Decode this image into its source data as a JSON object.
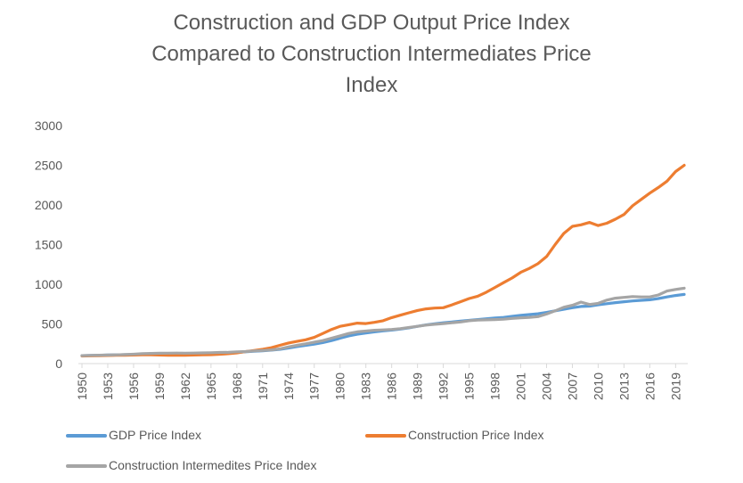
{
  "chart_data": {
    "type": "line",
    "title_lines": [
      "Construction and GDP Output Price Index",
      "Compared to Construction Intermediates Price",
      "Index"
    ],
    "xlabel": "",
    "ylabel": "",
    "ylim": [
      0,
      3000
    ],
    "yticks": [
      0,
      500,
      1000,
      1500,
      2000,
      2500,
      3000
    ],
    "xtick_years": [
      1950,
      1953,
      1956,
      1959,
      1962,
      1965,
      1968,
      1971,
      1974,
      1977,
      1980,
      1983,
      1986,
      1989,
      1992,
      1995,
      1998,
      2001,
      2004,
      2007,
      2010,
      2013,
      2016,
      2019
    ],
    "x": [
      1950,
      1951,
      1952,
      1953,
      1954,
      1955,
      1956,
      1957,
      1958,
      1959,
      1960,
      1961,
      1962,
      1963,
      1964,
      1965,
      1966,
      1967,
      1968,
      1969,
      1970,
      1971,
      1972,
      1973,
      1974,
      1975,
      1976,
      1977,
      1978,
      1979,
      1980,
      1981,
      1982,
      1983,
      1984,
      1985,
      1986,
      1987,
      1988,
      1989,
      1990,
      1991,
      1992,
      1993,
      1994,
      1995,
      1996,
      1997,
      1998,
      1999,
      2000,
      2001,
      2002,
      2003,
      2004,
      2005,
      2006,
      2007,
      2008,
      2009,
      2010,
      2011,
      2012,
      2013,
      2014,
      2015,
      2016,
      2017,
      2018,
      2019,
      2020
    ],
    "grid": false,
    "legend_position": "bottom",
    "series": [
      {
        "name": "GDP Price Index",
        "color": "#5b9bd5",
        "values": [
          100,
          102,
          105,
          108,
          110,
          112,
          115,
          118,
          120,
          122,
          124,
          126,
          127,
          128,
          130,
          132,
          135,
          138,
          142,
          148,
          155,
          162,
          170,
          180,
          195,
          215,
          230,
          245,
          265,
          290,
          320,
          350,
          370,
          385,
          400,
          412,
          422,
          435,
          450,
          470,
          488,
          502,
          515,
          525,
          535,
          545,
          555,
          565,
          575,
          582,
          595,
          608,
          618,
          628,
          645,
          665,
          685,
          705,
          720,
          725,
          740,
          755,
          768,
          780,
          790,
          798,
          805,
          820,
          840,
          858,
          872
        ]
      },
      {
        "name": "Construction Price Index",
        "color": "#ed7d31",
        "values": [
          95,
          98,
          100,
          102,
          104,
          106,
          108,
          110,
          110,
          108,
          106,
          105,
          106,
          108,
          110,
          112,
          118,
          125,
          135,
          150,
          165,
          180,
          200,
          230,
          260,
          280,
          300,
          330,
          380,
          430,
          470,
          490,
          510,
          505,
          520,
          540,
          580,
          610,
          640,
          670,
          690,
          700,
          705,
          740,
          780,
          820,
          850,
          900,
          960,
          1020,
          1080,
          1150,
          1200,
          1260,
          1350,
          1500,
          1640,
          1730,
          1750,
          1780,
          1740,
          1770,
          1820,
          1880,
          1990,
          2070,
          2150,
          2220,
          2300,
          2420,
          2500
        ]
      },
      {
        "name": "Construction Intermedites Price Index",
        "color": "#a5a5a5",
        "values": [
          100,
          103,
          106,
          108,
          110,
          113,
          118,
          125,
          128,
          130,
          132,
          133,
          132,
          133,
          135,
          137,
          140,
          142,
          148,
          152,
          160,
          165,
          172,
          185,
          210,
          230,
          250,
          270,
          290,
          320,
          350,
          380,
          400,
          410,
          420,
          425,
          430,
          440,
          455,
          470,
          485,
          495,
          505,
          515,
          525,
          540,
          548,
          552,
          555,
          560,
          570,
          578,
          582,
          592,
          625,
          665,
          710,
          735,
          775,
          745,
          760,
          800,
          825,
          835,
          845,
          840,
          840,
          865,
          915,
          935,
          950
        ]
      }
    ]
  }
}
